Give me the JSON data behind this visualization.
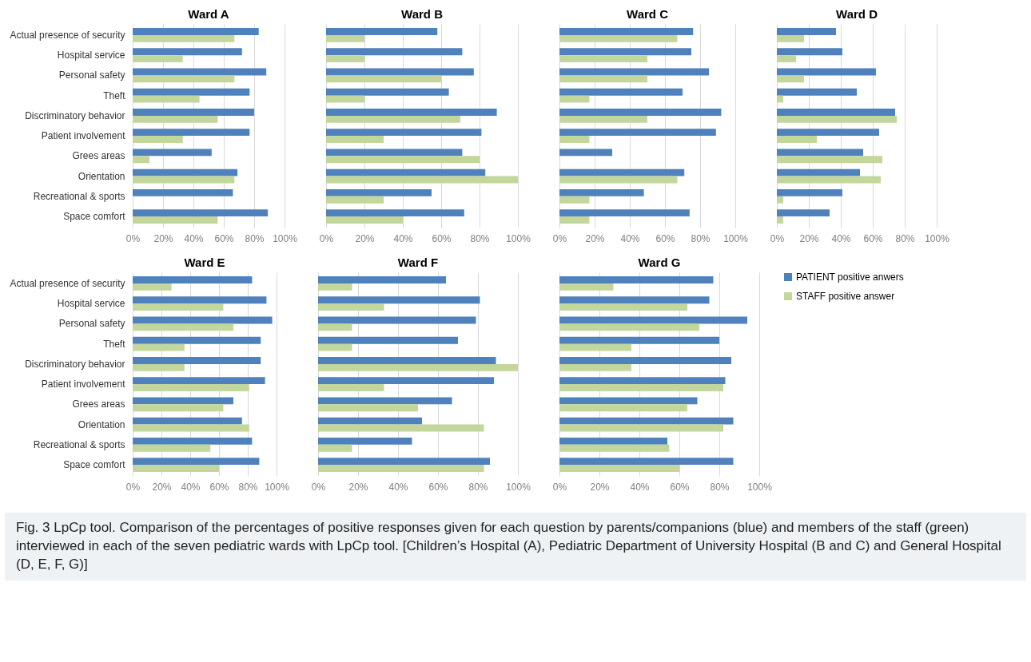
{
  "chart_data": [
    {
      "type": "bar",
      "title": "Ward A",
      "orientation": "horizontal",
      "categories": [
        "Actual presence of security",
        "Hospital service",
        "Personal safety",
        "Theft",
        "Discriminatory behavior",
        "Patient involvement",
        "Grees areas",
        "Orientation",
        "Recreational & sports",
        "Space comfort"
      ],
      "series": [
        {
          "color": "#4f81bd",
          "values": [
            83,
            72,
            88,
            77,
            80,
            77,
            52,
            69,
            66,
            89
          ]
        },
        {
          "color": "#c3d69b",
          "values": [
            67,
            33,
            67,
            44,
            56,
            33,
            11,
            67,
            0,
            56
          ]
        }
      ],
      "xlim": [
        0,
        100
      ],
      "xticks": [
        {
          "value": 0,
          "label": "0%"
        },
        {
          "value": 20,
          "label": "20%"
        },
        {
          "value": 40,
          "label": "40%"
        },
        {
          "value": 60,
          "label": "60%"
        },
        {
          "value": 80,
          "label": "80%"
        },
        {
          "value": 100,
          "label": "100%"
        }
      ],
      "grid": "x"
    },
    {
      "type": "bar",
      "title": "Ward B",
      "orientation": "horizontal",
      "categories": [
        null,
        null,
        null,
        null,
        null,
        null,
        null,
        null,
        null,
        null
      ],
      "series": [
        {
          "color": "#4f81bd",
          "values": [
            58,
            71,
            77,
            64,
            89,
            81,
            71,
            83,
            55,
            72
          ]
        },
        {
          "color": "#c3d69b",
          "values": [
            20,
            20,
            60,
            20,
            70,
            30,
            80,
            100,
            30,
            40
          ]
        }
      ],
      "xlim": [
        0,
        100
      ],
      "xticks": [
        {
          "value": 0,
          "label": "0%"
        },
        {
          "value": 20,
          "label": "20%"
        },
        {
          "value": 40,
          "label": "40%"
        },
        {
          "value": 60,
          "label": "60%"
        },
        {
          "value": 80,
          "label": "80%"
        },
        {
          "value": 100,
          "label": "100%"
        }
      ],
      "grid": "x"
    },
    {
      "type": "bar",
      "title": "Ward C",
      "orientation": "horizontal",
      "categories": [
        null,
        null,
        null,
        null,
        null,
        null,
        null,
        null,
        null,
        null
      ],
      "series": [
        {
          "color": "#4f81bd",
          "values": [
            76,
            75,
            85,
            70,
            92,
            89,
            30,
            71,
            48,
            74
          ]
        },
        {
          "color": "#c3d69b",
          "values": [
            67,
            50,
            50,
            17,
            50,
            17,
            0,
            67,
            17,
            17
          ]
        }
      ],
      "xlim": [
        0,
        100
      ],
      "xticks": [
        {
          "value": 0,
          "label": "0%"
        },
        {
          "value": 20,
          "label": "20%"
        },
        {
          "value": 40,
          "label": "40%"
        },
        {
          "value": 60,
          "label": "60%"
        },
        {
          "value": 80,
          "label": "80%"
        },
        {
          "value": 100,
          "label": "100%"
        }
      ],
      "grid": "x"
    },
    {
      "type": "bar",
      "title": "Ward D",
      "orientation": "horizontal",
      "categories": [
        null,
        null,
        null,
        null,
        null,
        null,
        null,
        null,
        null,
        null
      ],
      "series": [
        {
          "color": "#4f81bd",
          "values": [
            37,
            41,
            62,
            50,
            74,
            64,
            54,
            52,
            41,
            33
          ]
        },
        {
          "color": "#c3d69b",
          "values": [
            17,
            12,
            17,
            4,
            75,
            25,
            66,
            65,
            4,
            4
          ]
        }
      ],
      "xlim": [
        0,
        100
      ],
      "xticks": [
        {
          "value": 0,
          "label": "0%"
        },
        {
          "value": 20,
          "label": "20%"
        },
        {
          "value": 40,
          "label": "40%"
        },
        {
          "value": 60,
          "label": "60%"
        },
        {
          "value": 80,
          "label": "80%"
        },
        {
          "value": 100,
          "label": "100%"
        }
      ],
      "grid": "x"
    },
    {
      "type": "bar",
      "title": "Ward E",
      "orientation": "horizontal",
      "categories": [
        "Actual presence of security",
        "Hospital service",
        "Personal safety",
        "Theft",
        "Discriminatory behavior",
        "Patient involvement",
        "Grees areas",
        "Orientation",
        "Recreational & sports",
        "Space comfort"
      ],
      "series": [
        {
          "color": "#4f81bd",
          "values": [
            83,
            93,
            97,
            89,
            89,
            92,
            70,
            76,
            83,
            88
          ]
        },
        {
          "color": "#c3d69b",
          "values": [
            27,
            63,
            70,
            36,
            36,
            81,
            63,
            81,
            54,
            60
          ]
        }
      ],
      "xlim": [
        0,
        100
      ],
      "xticks": [
        {
          "value": 0,
          "label": "0%"
        },
        {
          "value": 20,
          "label": "20%"
        },
        {
          "value": 40,
          "label": "40%"
        },
        {
          "value": 60,
          "label": "60%"
        },
        {
          "value": 80,
          "label": "80%"
        },
        {
          "value": 100,
          "label": "100%"
        }
      ],
      "grid": "x"
    },
    {
      "type": "bar",
      "title": "Ward F",
      "orientation": "horizontal",
      "categories": [
        null,
        null,
        null,
        null,
        null,
        null,
        null,
        null,
        null,
        null
      ],
      "series": [
        {
          "color": "#4f81bd",
          "values": [
            64,
            81,
            79,
            70,
            89,
            88,
            67,
            52,
            47,
            86
          ]
        },
        {
          "color": "#c3d69b",
          "values": [
            17,
            33,
            17,
            17,
            100,
            33,
            50,
            83,
            17,
            83
          ]
        }
      ],
      "xlim": [
        0,
        100
      ],
      "xticks": [
        {
          "value": 0,
          "label": "0%"
        },
        {
          "value": 20,
          "label": "20%"
        },
        {
          "value": 40,
          "label": "40%"
        },
        {
          "value": 60,
          "label": "60%"
        },
        {
          "value": 80,
          "label": "80%"
        },
        {
          "value": 100,
          "label": "100%"
        }
      ],
      "grid": "x"
    },
    {
      "type": "bar",
      "title": "Ward G",
      "orientation": "horizontal",
      "categories": [
        null,
        null,
        null,
        null,
        null,
        null,
        null,
        null,
        null,
        null
      ],
      "series": [
        {
          "name": "PATIENT positive anwers",
          "color": "#4f81bd",
          "values": [
            77,
            75,
            94,
            80,
            86,
            83,
            69,
            87,
            54,
            87
          ]
        },
        {
          "name": "STAFF positive answer",
          "color": "#c3d69b",
          "values": [
            27,
            64,
            70,
            36,
            36,
            82,
            64,
            82,
            55,
            60
          ]
        }
      ],
      "xlim": [
        0,
        100
      ],
      "xticks": [
        {
          "value": 0,
          "label": "0%"
        },
        {
          "value": 20,
          "label": "20%"
        },
        {
          "value": 40,
          "label": "40%"
        },
        {
          "value": 60,
          "label": "60%"
        },
        {
          "value": 80,
          "label": "80%"
        },
        {
          "value": 100,
          "label": "100%"
        }
      ],
      "grid": "x",
      "legend": "right",
      "annotations": [
        "Fig. 3 LpCp tool. Comparison of the percentages of positive responses given for each question by parents/companions (blue) and members of the staff (green) interviewed in each of the seven pediatric wards with LpCp tool. [Children’s Hospital (A), Pediatric Department of University Hospital (B and C) and General Hospital (D, E, F, G)]"
      ]
    }
  ]
}
